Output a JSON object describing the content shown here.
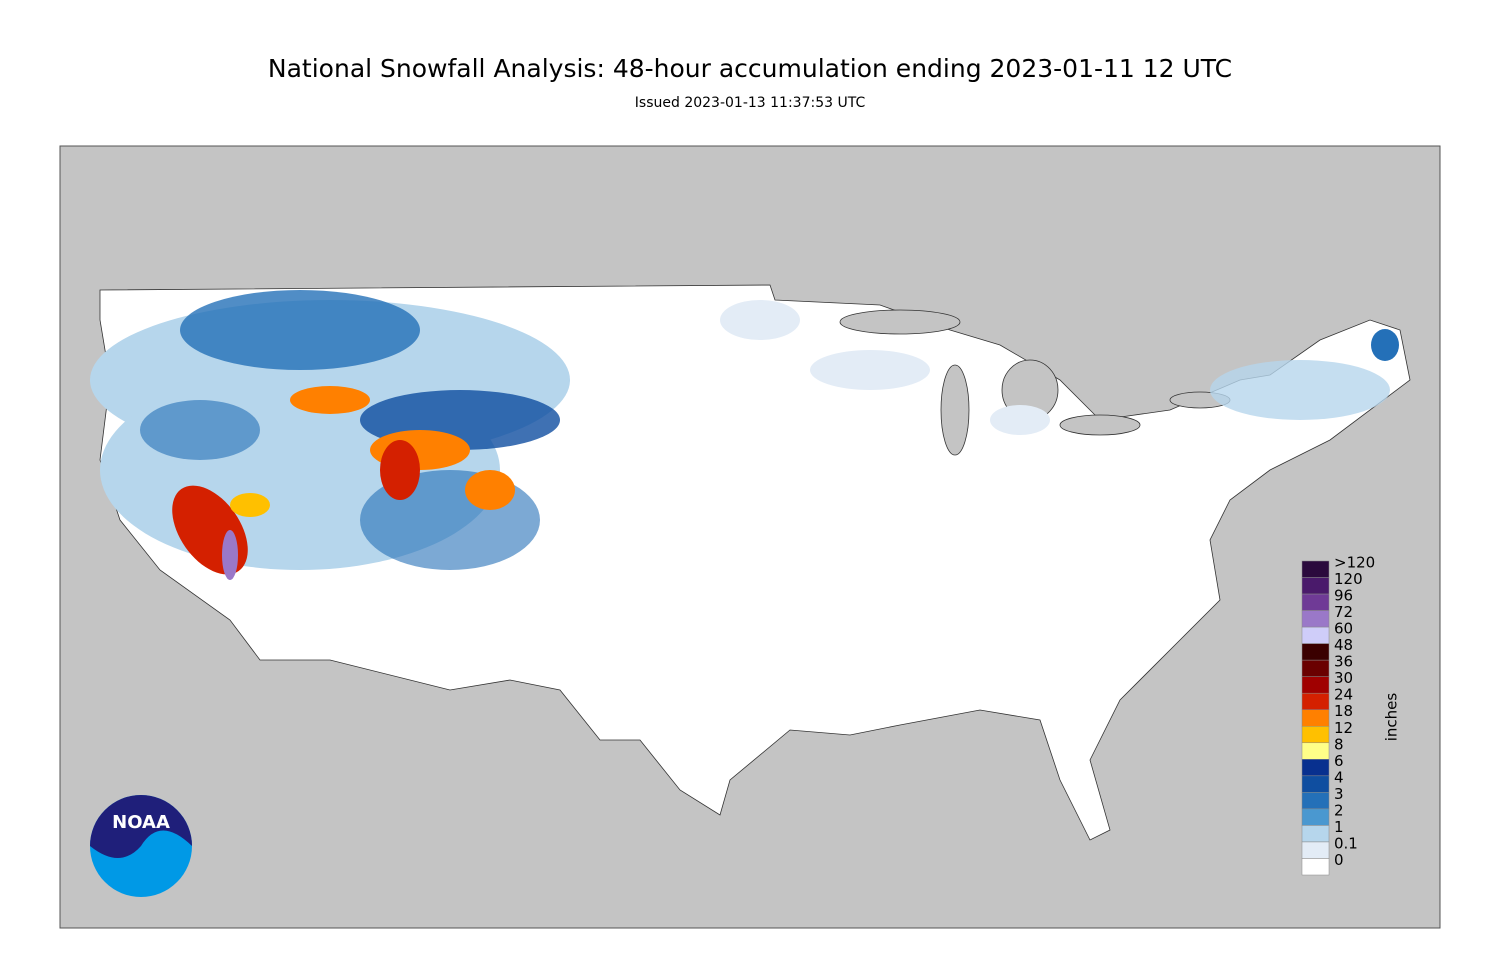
{
  "header": {
    "title": "National Snowfall Analysis: 48-hour accumulation ending 2023-01-11 12 UTC",
    "subtitle": "Issued 2023-01-13 11:37:53 UTC"
  },
  "logo": {
    "text": "NOAA"
  },
  "legend": {
    "title": "inches",
    "levels": [
      {
        "label": ">120",
        "color": "#2b0a3d"
      },
      {
        "label": "120",
        "color": "#4a1a6b"
      },
      {
        "label": "96",
        "color": "#6f3a96"
      },
      {
        "label": "72",
        "color": "#9a78c8"
      },
      {
        "label": "60",
        "color": "#cfcdf9"
      },
      {
        "label": "48",
        "color": "#3a0000"
      },
      {
        "label": "36",
        "color": "#6a0000"
      },
      {
        "label": "30",
        "color": "#a00000"
      },
      {
        "label": "24",
        "color": "#d42000"
      },
      {
        "label": "18",
        "color": "#ff8000"
      },
      {
        "label": "12",
        "color": "#ffc000"
      },
      {
        "label": "8",
        "color": "#ffff88"
      },
      {
        "label": "6",
        "color": "#08308f"
      },
      {
        "label": "4",
        "color": "#0f4ea0"
      },
      {
        "label": "3",
        "color": "#2470b8"
      },
      {
        "label": "2",
        "color": "#4a98d0"
      },
      {
        "label": "1",
        "color": "#b6d6ec"
      },
      {
        "label": "0.1",
        "color": "#e3ecf6"
      },
      {
        "label": "0",
        "color": "#ffffff"
      }
    ]
  }
}
